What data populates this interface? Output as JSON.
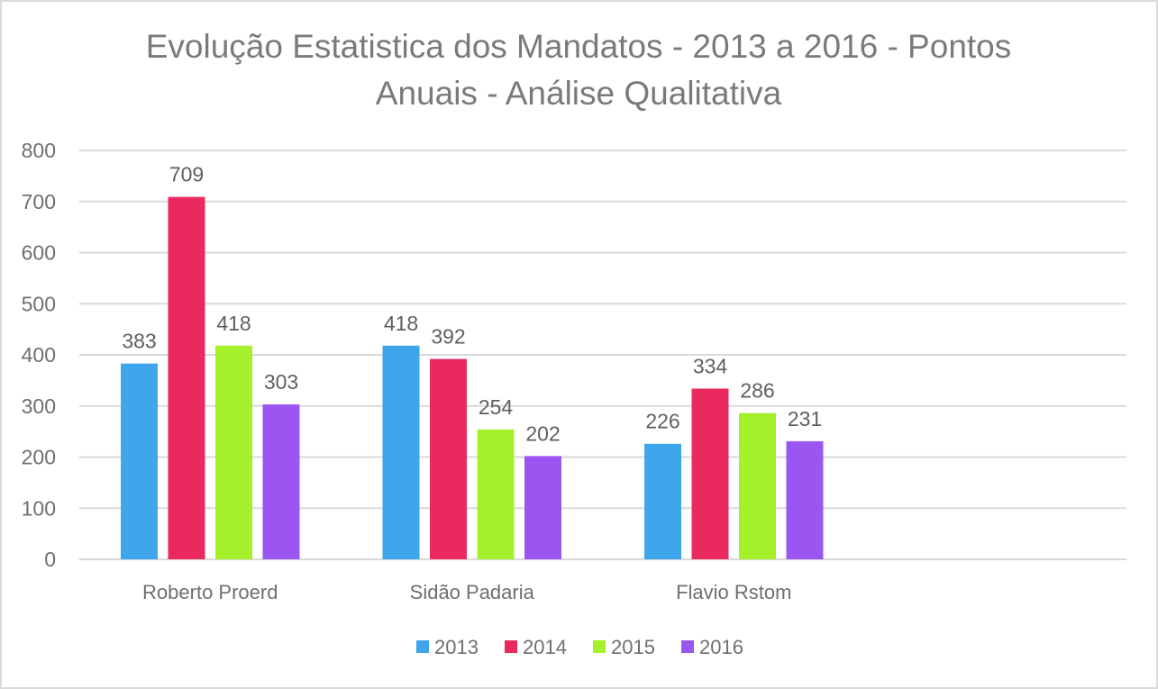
{
  "chart_data": {
    "type": "bar",
    "title": "Evolução Estatistica dos Mandatos - 2013 a 2016 - Pontos Anuais - Análise Qualitativa",
    "title_lines": [
      "Evolução Estatistica dos Mandatos - 2013 a 2016 - Pontos",
      "Anuais - Análise Qualitativa"
    ],
    "categories": [
      "Roberto Proerd",
      "Sidão Padaria",
      "Flavio Rstom",
      ""
    ],
    "series": [
      {
        "name": "2013",
        "color": "#3ea6ea",
        "values": [
          383,
          418,
          226,
          null
        ]
      },
      {
        "name": "2014",
        "color": "#ea2a5f",
        "values": [
          709,
          392,
          334,
          null
        ]
      },
      {
        "name": "2015",
        "color": "#a3f02b",
        "values": [
          418,
          254,
          286,
          null
        ]
      },
      {
        "name": "2016",
        "color": "#9b56f1",
        "values": [
          303,
          202,
          231,
          null
        ]
      }
    ],
    "ylim": [
      0,
      800
    ],
    "yticks": [
      0,
      100,
      200,
      300,
      400,
      500,
      600,
      700,
      800
    ],
    "grid": true,
    "legend": "bottom",
    "data_labels": true,
    "xlabel": "",
    "ylabel": ""
  }
}
